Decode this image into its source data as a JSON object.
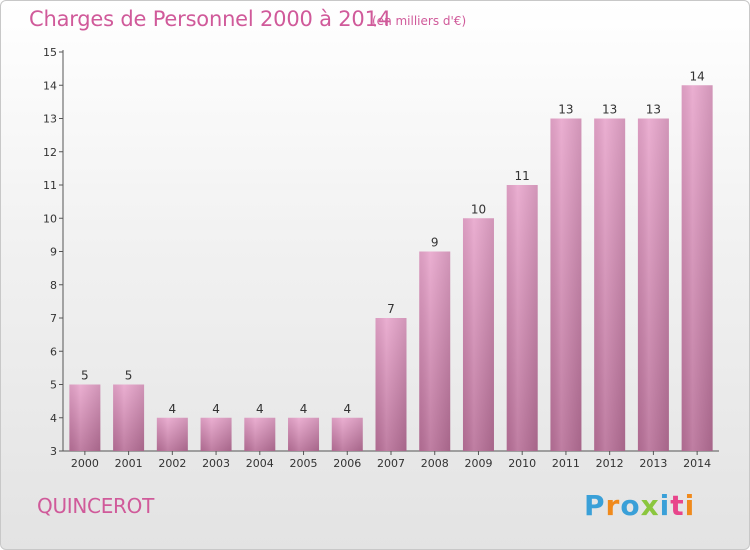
{
  "title": "Charges de Personnel 2000 à 2014",
  "unit_note": "(en milliers d'€)",
  "commune": "QUINCEROT",
  "logo": {
    "text": "Proxiti",
    "letters": [
      {
        "ch": "P",
        "color": "#3aa0d8"
      },
      {
        "ch": "r",
        "color": "#f08a1c"
      },
      {
        "ch": "o",
        "color": "#3aa0d8"
      },
      {
        "ch": "x",
        "color": "#8bc63e"
      },
      {
        "ch": "i",
        "color": "#3aa0d8"
      },
      {
        "ch": "t",
        "color": "#e8458b"
      },
      {
        "ch": "i",
        "color": "#f08a1c"
      }
    ]
  },
  "colors": {
    "bar_top": "#e8a6cc",
    "bar_bottom": "#b87098",
    "title": "#d05a9a"
  },
  "chart_data": {
    "type": "bar",
    "categories": [
      "2000",
      "2001",
      "2002",
      "2003",
      "2004",
      "2005",
      "2006",
      "2007",
      "2008",
      "2009",
      "2010",
      "2011",
      "2012",
      "2013",
      "2014"
    ],
    "values": [
      5,
      5,
      4,
      4,
      4,
      4,
      4,
      7,
      9,
      10,
      11,
      13,
      13,
      13,
      14
    ],
    "ylim": [
      3,
      15
    ],
    "yticks": [
      3,
      4,
      5,
      6,
      7,
      8,
      9,
      10,
      11,
      12,
      13,
      14,
      15
    ],
    "grid": false
  }
}
